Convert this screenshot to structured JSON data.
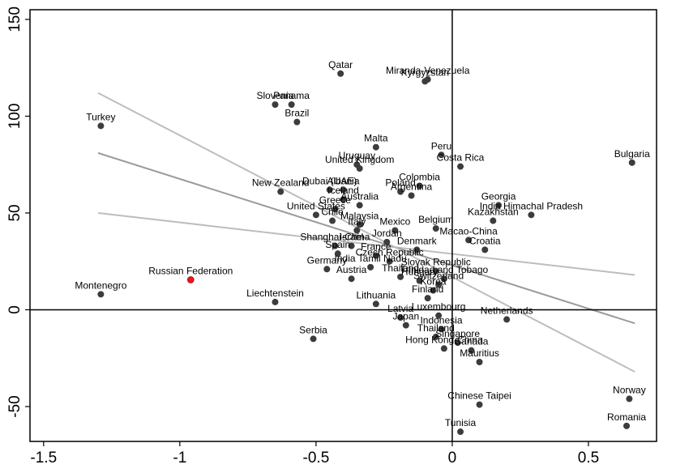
{
  "chart_data": {
    "type": "scatter",
    "title": "",
    "xlabel": "",
    "ylabel": "",
    "xlim": [
      -1.55,
      0.75
    ],
    "ylim": [
      -68,
      155
    ],
    "xticks": [
      -1.5,
      -1,
      -0.5,
      0,
      0.5
    ],
    "xtick_labels": [
      "-1.5",
      "-1",
      "-0.5",
      "0",
      "0.5"
    ],
    "yticks": [
      -50,
      0,
      50,
      100,
      150
    ],
    "ytick_labels": [
      "-50",
      "0",
      "50",
      "100",
      "150"
    ],
    "reference_lines": {
      "x": 0,
      "y": 0
    },
    "grid": false,
    "legend": "none",
    "highlight_color": "#e8141e",
    "point_color": "#3c3c3c",
    "fit_lines": [
      {
        "color": "#bdbdbd",
        "x": [
          -1.3,
          0.67
        ],
        "y": [
          50,
          18
        ]
      },
      {
        "color": "#9a9a9a",
        "x": [
          -1.3,
          0.67
        ],
        "y": [
          81,
          -7
        ]
      },
      {
        "color": "#bdbdbd",
        "x": [
          -1.3,
          0.67
        ],
        "y": [
          112,
          -32
        ]
      }
    ],
    "points": [
      {
        "label": "Turkey",
        "x": -1.29,
        "y": 95
      },
      {
        "label": "Montenegro",
        "x": -1.29,
        "y": 8
      },
      {
        "label": "Russian Federation",
        "x": -0.96,
        "y": 15.5,
        "highlight": true
      },
      {
        "label": "Slovenia",
        "x": -0.65,
        "y": 106
      },
      {
        "label": "Panama",
        "x": -0.59,
        "y": 106
      },
      {
        "label": "Brazil",
        "x": -0.57,
        "y": 97
      },
      {
        "label": "Qatar",
        "x": -0.41,
        "y": 122
      },
      {
        "label": "Kyrgyzstan",
        "x": -0.1,
        "y": 118
      },
      {
        "label": "Miranda-Venezuela",
        "x": -0.09,
        "y": 119
      },
      {
        "label": "Malta",
        "x": -0.28,
        "y": 84
      },
      {
        "label": "Uruguay",
        "x": -0.35,
        "y": 75
      },
      {
        "label": "United Kingdom",
        "x": -0.34,
        "y": 73
      },
      {
        "label": "Peru",
        "x": -0.04,
        "y": 80
      },
      {
        "label": "Costa Rica",
        "x": 0.03,
        "y": 74
      },
      {
        "label": "Bulgaria",
        "x": 0.66,
        "y": 76
      },
      {
        "label": "New Zealand",
        "x": -0.63,
        "y": 61
      },
      {
        "label": "Dubai (UAE)",
        "x": -0.45,
        "y": 62
      },
      {
        "label": "Albania",
        "x": -0.4,
        "y": 62
      },
      {
        "label": "Colombia",
        "x": -0.12,
        "y": 64
      },
      {
        "label": "Poland",
        "x": -0.19,
        "y": 61
      },
      {
        "label": "Argentina",
        "x": -0.15,
        "y": 59
      },
      {
        "label": "Georgia",
        "x": 0.17,
        "y": 54
      },
      {
        "label": "India Himachal Pradesh",
        "x": 0.29,
        "y": 49
      },
      {
        "label": "Kazakhstan",
        "x": 0.15,
        "y": 46
      },
      {
        "label": "Iceland",
        "x": -0.4,
        "y": 57
      },
      {
        "label": "Australia",
        "x": -0.34,
        "y": 54
      },
      {
        "label": "Greece",
        "x": -0.43,
        "y": 52
      },
      {
        "label": "United States",
        "x": -0.5,
        "y": 49
      },
      {
        "label": "Chile",
        "x": -0.44,
        "y": 46
      },
      {
        "label": "Malaysia",
        "x": -0.34,
        "y": 44
      },
      {
        "label": "Mexico",
        "x": -0.21,
        "y": 41
      },
      {
        "label": "Belgium",
        "x": -0.06,
        "y": 42
      },
      {
        "label": "Italy",
        "x": -0.35,
        "y": 41
      },
      {
        "label": "Macao-China",
        "x": 0.06,
        "y": 36
      },
      {
        "label": "Croatia",
        "x": 0.12,
        "y": 31
      },
      {
        "label": "Shanghai-China",
        "x": -0.43,
        "y": 33
      },
      {
        "label": "Israel",
        "x": -0.37,
        "y": 33
      },
      {
        "label": "Jordan",
        "x": -0.24,
        "y": 35
      },
      {
        "label": "Denmark",
        "x": -0.13,
        "y": 31
      },
      {
        "label": "Spain",
        "x": -0.42,
        "y": 29
      },
      {
        "label": "France",
        "x": -0.28,
        "y": 28
      },
      {
        "label": "Czech Republic",
        "x": -0.23,
        "y": 25
      },
      {
        "label": "Germany",
        "x": -0.46,
        "y": 21
      },
      {
        "label": "India Tamil Nadu",
        "x": -0.3,
        "y": 22
      },
      {
        "label": "Slovak Republic",
        "x": -0.06,
        "y": 20
      },
      {
        "label": "Austria",
        "x": -0.37,
        "y": 16
      },
      {
        "label": "Thailand",
        "x": -0.19,
        "y": 17
      },
      {
        "label": "Trinidad and Tobago",
        "x": -0.03,
        "y": 16
      },
      {
        "label": "Hungary",
        "x": -0.12,
        "y": 15
      },
      {
        "label": "Switzerland",
        "x": -0.05,
        "y": 13
      },
      {
        "label": "Korea",
        "x": -0.07,
        "y": 10
      },
      {
        "label": "Lithuania",
        "x": -0.28,
        "y": 3
      },
      {
        "label": "Finland",
        "x": -0.09,
        "y": 6
      },
      {
        "label": "Liechtenstein",
        "x": -0.65,
        "y": 4
      },
      {
        "label": "Latvia",
        "x": -0.19,
        "y": -4
      },
      {
        "label": "Japan",
        "x": -0.17,
        "y": -8
      },
      {
        "label": "Luxembourg",
        "x": -0.05,
        "y": -3
      },
      {
        "label": "Netherlands",
        "x": 0.2,
        "y": -5
      },
      {
        "label": "Serbia",
        "x": -0.51,
        "y": -15
      },
      {
        "label": "Indonesia",
        "x": -0.04,
        "y": -10
      },
      {
        "label": "Thailand",
        "x": -0.06,
        "y": -14
      },
      {
        "label": "Singapore",
        "x": 0.02,
        "y": -17
      },
      {
        "label": "Hong Kong-China",
        "x": -0.03,
        "y": -20
      },
      {
        "label": "Canada",
        "x": 0.07,
        "y": -21
      },
      {
        "label": "Mauritius",
        "x": 0.1,
        "y": -27
      },
      {
        "label": "Chinese Taipei",
        "x": 0.1,
        "y": -49
      },
      {
        "label": "Tunisia",
        "x": 0.03,
        "y": -63
      },
      {
        "label": "Norway",
        "x": 0.65,
        "y": -46
      },
      {
        "label": "Romania",
        "x": 0.64,
        "y": -60
      }
    ]
  }
}
